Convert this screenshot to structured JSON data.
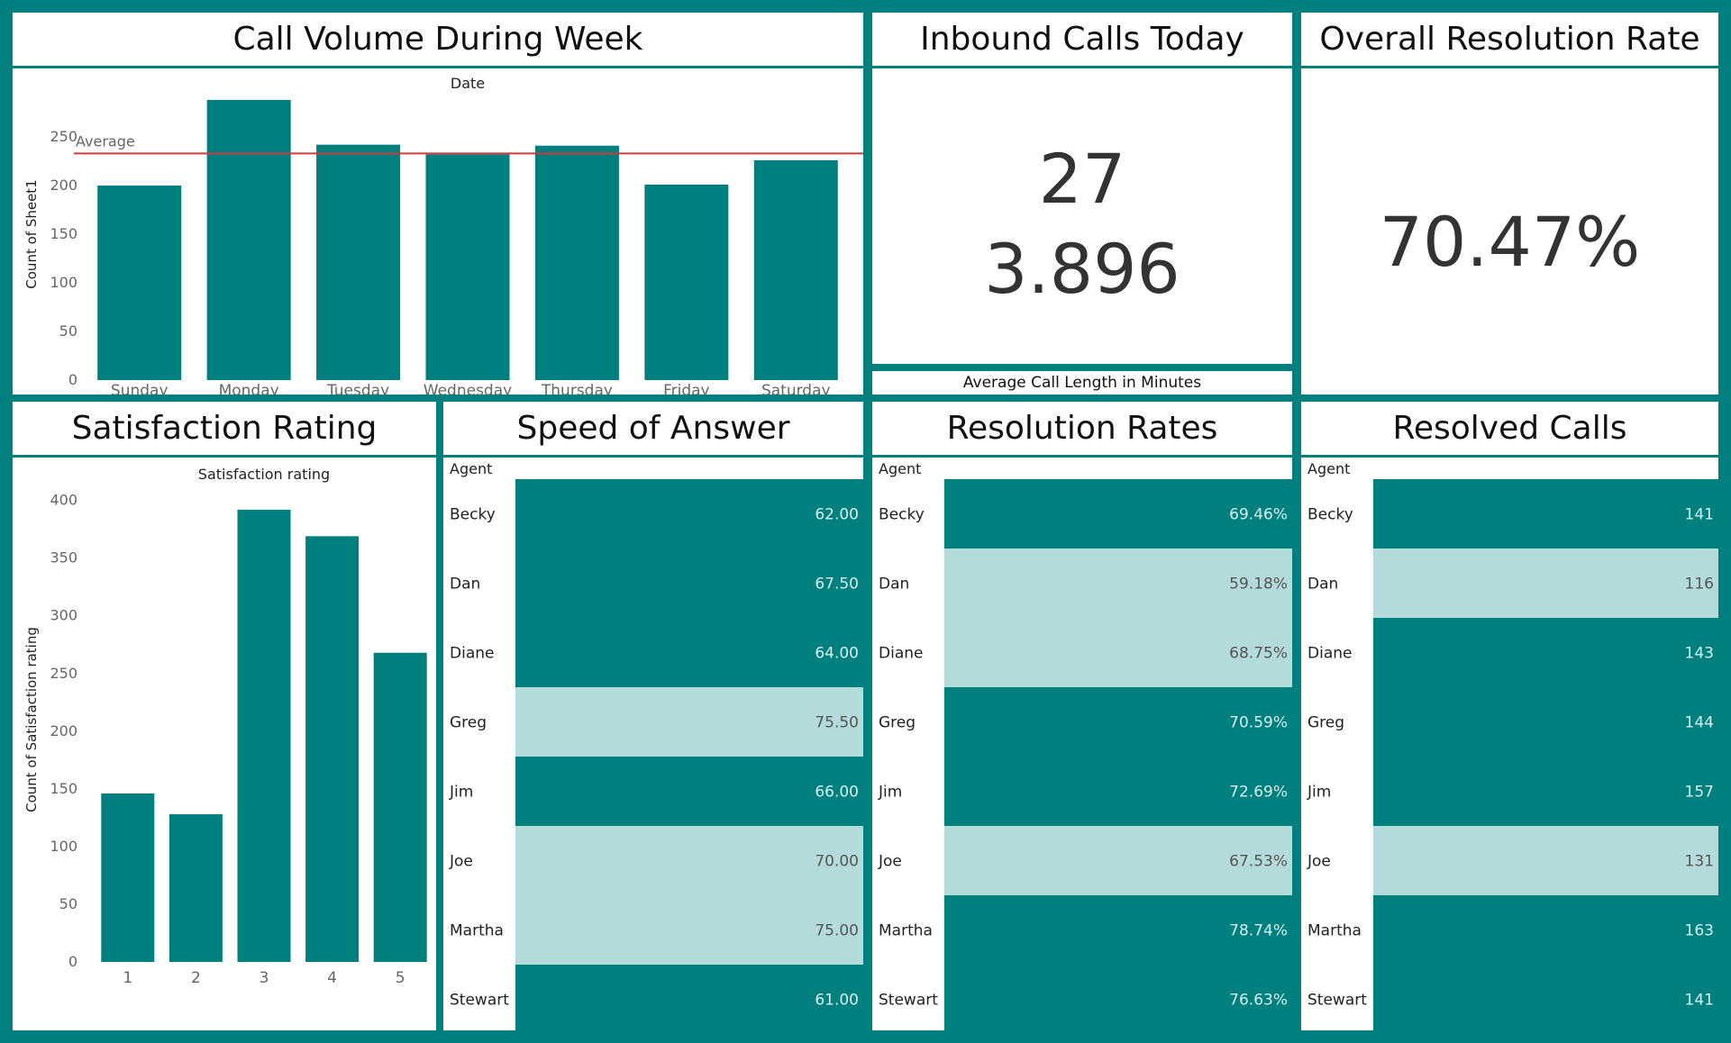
{
  "colors": {
    "teal": "#007f7f",
    "light": "#b3dbda",
    "average_line": "#d0393e"
  },
  "call_volume": {
    "title": "Call Volume During Week",
    "chart_data": {
      "type": "bar",
      "title": "Call Volume During Week",
      "column_header": "Date",
      "ylabel": "Count of Sheet1",
      "categories": [
        "Sunday",
        "Monday",
        "Tuesday",
        "Wednesday",
        "Thursday",
        "Friday",
        "Saturday"
      ],
      "values": [
        200,
        288,
        242,
        232,
        241,
        201,
        226
      ],
      "yticks": [
        "0",
        "50",
        "100",
        "150",
        "200",
        "250"
      ],
      "ylim": [
        0,
        300
      ],
      "reference_line": {
        "label": "Average",
        "value": 233
      },
      "grid": false
    }
  },
  "inbound": {
    "title": "Inbound Calls Today",
    "value_calls": "27",
    "value_avg_length": "3.896",
    "caption": "Average Call Length in Minutes"
  },
  "overall": {
    "title": "Overall Resolution Rate",
    "value": "70.47%"
  },
  "satisfaction": {
    "title": "Satisfaction Rating",
    "chart_data": {
      "type": "bar",
      "title": "Satisfaction Rating",
      "column_header": "Satisfaction rating",
      "ylabel": "Count of Satisfaction rating",
      "categories": [
        "1",
        "2",
        "3",
        "4",
        "5"
      ],
      "values": [
        146,
        128,
        392,
        369,
        268
      ],
      "yticks": [
        "0",
        "50",
        "100",
        "150",
        "200",
        "250",
        "300",
        "350",
        "400"
      ],
      "ylim": [
        0,
        420
      ],
      "grid": false
    }
  },
  "tables": [
    {
      "key": "speed",
      "title": "Speed of Answer",
      "chart_data": {
        "type": "table",
        "title": "Speed of Answer",
        "column_header": "Agent",
        "rows": [
          {
            "agent": "Becky",
            "value": "62.00",
            "shade": "dark"
          },
          {
            "agent": "Dan",
            "value": "67.50",
            "shade": "dark"
          },
          {
            "agent": "Diane",
            "value": "64.00",
            "shade": "dark"
          },
          {
            "agent": "Greg",
            "value": "75.50",
            "shade": "light"
          },
          {
            "agent": "Jim",
            "value": "66.00",
            "shade": "dark"
          },
          {
            "agent": "Joe",
            "value": "70.00",
            "shade": "light"
          },
          {
            "agent": "Martha",
            "value": "75.00",
            "shade": "light"
          },
          {
            "agent": "Stewart",
            "value": "61.00",
            "shade": "dark"
          }
        ]
      }
    },
    {
      "key": "rates",
      "title": "Resolution Rates",
      "chart_data": {
        "type": "table",
        "title": "Resolution Rates",
        "column_header": "Agent",
        "rows": [
          {
            "agent": "Becky",
            "value": "69.46%",
            "shade": "dark"
          },
          {
            "agent": "Dan",
            "value": "59.18%",
            "shade": "light"
          },
          {
            "agent": "Diane",
            "value": "68.75%",
            "shade": "light"
          },
          {
            "agent": "Greg",
            "value": "70.59%",
            "shade": "dark"
          },
          {
            "agent": "Jim",
            "value": "72.69%",
            "shade": "dark"
          },
          {
            "agent": "Joe",
            "value": "67.53%",
            "shade": "light"
          },
          {
            "agent": "Martha",
            "value": "78.74%",
            "shade": "dark"
          },
          {
            "agent": "Stewart",
            "value": "76.63%",
            "shade": "dark"
          }
        ]
      }
    },
    {
      "key": "resolved",
      "title": "Resolved Calls",
      "chart_data": {
        "type": "table",
        "title": "Resolved Calls",
        "column_header": "Agent",
        "rows": [
          {
            "agent": "Becky",
            "value": "141",
            "shade": "dark"
          },
          {
            "agent": "Dan",
            "value": "116",
            "shade": "light"
          },
          {
            "agent": "Diane",
            "value": "143",
            "shade": "dark"
          },
          {
            "agent": "Greg",
            "value": "144",
            "shade": "dark"
          },
          {
            "agent": "Jim",
            "value": "157",
            "shade": "dark"
          },
          {
            "agent": "Joe",
            "value": "131",
            "shade": "light"
          },
          {
            "agent": "Martha",
            "value": "163",
            "shade": "dark"
          },
          {
            "agent": "Stewart",
            "value": "141",
            "shade": "dark"
          }
        ]
      }
    }
  ]
}
